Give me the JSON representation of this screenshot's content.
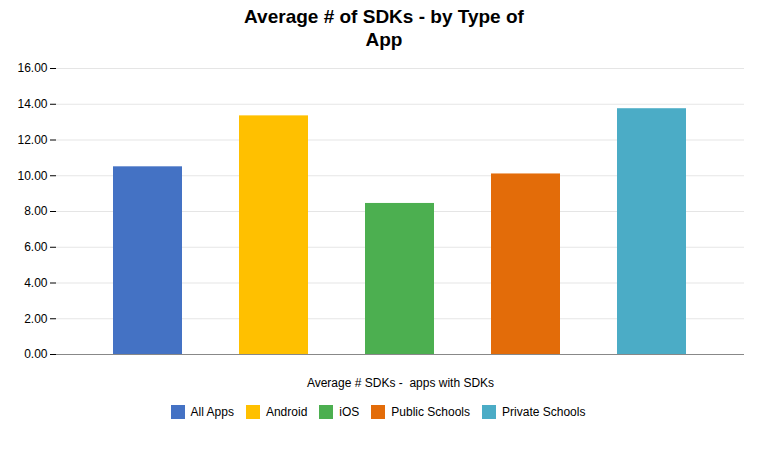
{
  "chart_data": {
    "type": "bar",
    "title": "Average # of SDKs - by Type of\nApp",
    "xlabel": "Average # SDKs -  apps with SDKs",
    "categories": [
      "All Apps",
      "Android",
      "iOS",
      "Public Schools",
      "Private Schools"
    ],
    "values": [
      10.5,
      13.35,
      8.45,
      10.1,
      13.75
    ],
    "colors": [
      "#4472C4",
      "#FFC000",
      "#4CAF50",
      "#E36C09",
      "#4BACC6"
    ],
    "ylim": [
      0,
      16
    ],
    "yticks": [
      {
        "value": 0,
        "label": "0.00"
      },
      {
        "value": 2,
        "label": "2.00"
      },
      {
        "value": 4,
        "label": "4.00"
      },
      {
        "value": 6,
        "label": "6.00"
      },
      {
        "value": 8,
        "label": "8.00"
      },
      {
        "value": 10,
        "label": "10.00"
      },
      {
        "value": 12,
        "label": "12.00"
      },
      {
        "value": 14,
        "label": "14.00"
      },
      {
        "value": 16,
        "label": "16.00"
      }
    ],
    "grid": true,
    "legend": "bottom",
    "tick_labels": "y"
  }
}
